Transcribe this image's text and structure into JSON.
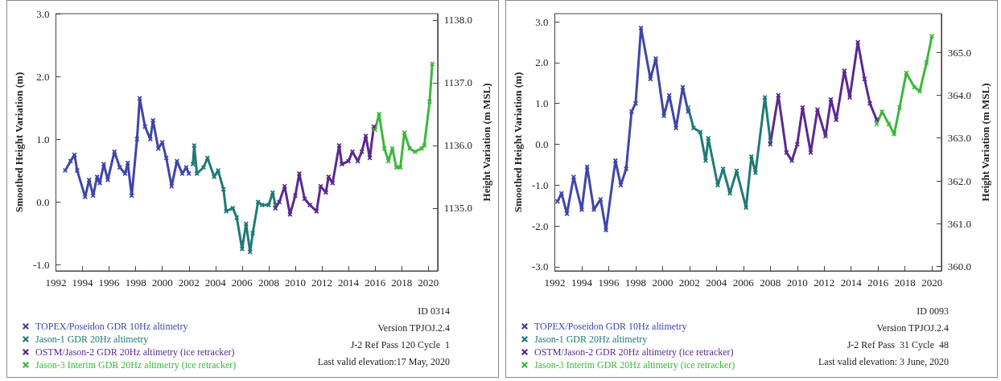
{
  "chart_data": [
    {
      "type": "line",
      "marker": "cross",
      "grid": false,
      "legend": "bottom left",
      "ylabel": "Smoothed Height Variation (m)",
      "y2label": "Height Variation (m MSL)",
      "xlim": [
        1992,
        2020.7
      ],
      "xticks": [
        1992,
        1994,
        1996,
        1998,
        2000,
        2002,
        2004,
        2006,
        2008,
        2010,
        2012,
        2014,
        2016,
        2018,
        2020
      ],
      "ylim": [
        -1.1,
        3.0
      ],
      "yticks": [
        {
          "value": -1,
          "label": "-1.0"
        },
        {
          "value": 0,
          "label": "0.0"
        },
        {
          "value": 1,
          "label": "1.0"
        },
        {
          "value": 2,
          "label": "2.0"
        },
        {
          "value": 3,
          "label": "3.0"
        }
      ],
      "y2lim": [
        1134.0,
        1138.1
      ],
      "y2ticks": [
        {
          "value": 1135,
          "label": "1135.0"
        },
        {
          "value": 1136,
          "label": "1136.0"
        },
        {
          "value": 1137,
          "label": "1137.0"
        },
        {
          "value": 1138,
          "label": "1138.0"
        }
      ],
      "series": [
        {
          "name": "TOPEX/Poseidon GDR 10Hz altimetry",
          "color": "#3f46a8",
          "x": [
            1992.7,
            1993.1,
            1993.4,
            1993.6,
            1994.2,
            1994.5,
            1994.8,
            1995.1,
            1995.3,
            1995.6,
            1995.9,
            1996.4,
            1996.8,
            1997.2,
            1997.4,
            1997.7,
            1998.1,
            1998.3,
            1998.7,
            1999.1,
            1999.3,
            1999.7,
            2000.0,
            2000.3,
            2000.7,
            2001.1,
            2001.5,
            2001.8,
            2002.0
          ],
          "values": [
            0.5,
            0.65,
            0.75,
            0.5,
            0.08,
            0.35,
            0.1,
            0.4,
            0.3,
            0.6,
            0.35,
            0.8,
            0.55,
            0.45,
            0.62,
            0.1,
            1.0,
            1.65,
            1.2,
            1.0,
            1.3,
            0.85,
            0.95,
            0.7,
            0.25,
            0.65,
            0.45,
            0.55,
            0.45
          ]
        },
        {
          "name": "Jason-1 GDR 20Hz altimetry",
          "color": "#1f7a78",
          "x": [
            2002.3,
            2002.4,
            2002.6,
            2003.1,
            2003.4,
            2003.9,
            2004.2,
            2004.6,
            2004.8,
            2005.3,
            2005.6,
            2006.0,
            2006.3,
            2006.6,
            2006.8,
            2007.2,
            2007.5,
            2008.0,
            2008.3,
            2008.5
          ],
          "values": [
            0.6,
            0.9,
            0.45,
            0.55,
            0.7,
            0.4,
            0.5,
            0.2,
            -0.15,
            -0.1,
            -0.25,
            -0.75,
            -0.35,
            -0.8,
            -0.5,
            0.0,
            -0.05,
            -0.05,
            0.15,
            -0.05
          ]
        },
        {
          "name": "OSTM/Jason-2 GDR 20Hz altimetry (ice retracker)",
          "color": "#5b2a8e",
          "x": [
            2008.5,
            2008.8,
            2009.2,
            2009.6,
            2010.0,
            2010.3,
            2010.7,
            2011.1,
            2011.6,
            2011.9,
            2012.3,
            2012.5,
            2012.8,
            2013.3,
            2013.5,
            2014.0,
            2014.3,
            2014.7,
            2015.0,
            2015.3,
            2015.6,
            2015.9
          ],
          "values": [
            -0.1,
            0.0,
            0.25,
            -0.2,
            0.1,
            0.45,
            0.05,
            -0.05,
            -0.15,
            0.25,
            0.15,
            0.4,
            0.3,
            0.9,
            0.6,
            0.65,
            0.8,
            0.65,
            0.8,
            1.05,
            0.7,
            1.2
          ]
        },
        {
          "name": "Jason-3 Interim GDR 20Hz altimetry (ice retracker)",
          "color": "#3cb83c",
          "x": [
            2016.0,
            2016.3,
            2016.7,
            2017.0,
            2017.3,
            2017.6,
            2017.9,
            2018.2,
            2018.6,
            2019.0,
            2019.5,
            2019.7,
            2020.1,
            2020.3
          ],
          "values": [
            1.15,
            1.4,
            0.85,
            0.65,
            0.85,
            0.55,
            0.55,
            1.1,
            0.85,
            0.8,
            0.85,
            0.9,
            1.6,
            2.2
          ]
        }
      ],
      "annotations": [
        "ID 0314",
        "Version TPJOJ.2.4",
        "J-2 Ref Pass 120 Cycle  1",
        "Last valid elevation:17 May, 2020"
      ]
    },
    {
      "type": "line",
      "marker": "cross",
      "grid": false,
      "legend": "bottom left",
      "ylabel": "Smoothed Height Variation (m)",
      "y2label": "Height Variation (m MSL)",
      "xlim": [
        1992,
        2020.7
      ],
      "xticks": [
        1992,
        1994,
        1996,
        1998,
        2000,
        2002,
        2004,
        2006,
        2008,
        2010,
        2012,
        2014,
        2016,
        2018,
        2020
      ],
      "ylim": [
        -3.1,
        3.2
      ],
      "yticks": [
        {
          "value": -3,
          "label": "-3.0"
        },
        {
          "value": -2,
          "label": "-2.0"
        },
        {
          "value": -1,
          "label": "-1.0"
        },
        {
          "value": 0,
          "label": "0.0"
        },
        {
          "value": 1,
          "label": "1.0"
        },
        {
          "value": 2,
          "label": "2.0"
        },
        {
          "value": 3,
          "label": "3.0"
        }
      ],
      "y2lim": [
        359.9,
        365.9
      ],
      "y2ticks": [
        {
          "value": 360,
          "label": "360.0"
        },
        {
          "value": 361,
          "label": "361.0"
        },
        {
          "value": 362,
          "label": "362.0"
        },
        {
          "value": 363,
          "label": "363.0"
        },
        {
          "value": 364,
          "label": "364.0"
        },
        {
          "value": 365,
          "label": "365.0"
        }
      ],
      "series": [
        {
          "name": "TOPEX/Poseidon GDR 10Hz altimetry",
          "color": "#3f46a8",
          "x": [
            1992.2,
            1992.5,
            1992.9,
            1993.4,
            1994.0,
            1994.4,
            1994.9,
            1995.4,
            1995.8,
            1996.5,
            1996.9,
            1997.3,
            1997.7,
            1998.0,
            1998.4,
            1999.1,
            1999.5,
            2000.1,
            2000.5,
            2001.0,
            2001.5,
            2001.9
          ],
          "values": [
            -1.4,
            -1.2,
            -1.7,
            -0.8,
            -1.6,
            -0.55,
            -1.6,
            -1.35,
            -2.1,
            -0.4,
            -1.0,
            -0.6,
            0.8,
            1.0,
            2.85,
            1.6,
            2.1,
            0.7,
            1.2,
            0.4,
            1.4,
            0.8
          ]
        },
        {
          "name": "Jason-1 GDR 20Hz altimetry",
          "color": "#1f7a78",
          "x": [
            2001.9,
            2002.3,
            2002.8,
            2003.2,
            2003.4,
            2004.1,
            2004.5,
            2005.0,
            2005.5,
            2006.2,
            2006.6,
            2006.9,
            2007.6,
            2008.0
          ],
          "values": [
            0.9,
            0.4,
            0.3,
            -0.4,
            0.15,
            -1.0,
            -0.6,
            -1.2,
            -0.65,
            -1.55,
            -0.3,
            -0.7,
            1.15,
            0.1
          ]
        },
        {
          "name": "OSTM/Jason-2 GDR 20Hz altimetry (ice retracker)",
          "color": "#5b2a8e",
          "x": [
            2008.0,
            2008.6,
            2009.2,
            2009.6,
            2010.0,
            2010.4,
            2011.0,
            2011.5,
            2012.1,
            2012.5,
            2012.9,
            2013.5,
            2013.9,
            2014.5,
            2015.0,
            2015.4,
            2015.9
          ],
          "values": [
            0.0,
            1.2,
            -0.2,
            -0.4,
            0.0,
            0.9,
            -0.2,
            0.85,
            0.2,
            1.1,
            0.6,
            1.8,
            1.15,
            2.5,
            1.6,
            1.0,
            0.6
          ]
        },
        {
          "name": "Jason-3 Interim GDR 20Hz altimetry (ice retracker)",
          "color": "#3cb83c",
          "x": [
            2015.9,
            2016.3,
            2016.8,
            2017.2,
            2017.6,
            2018.1,
            2018.7,
            2019.1,
            2019.6,
            2020.0
          ],
          "values": [
            0.5,
            0.8,
            0.5,
            0.25,
            0.9,
            1.75,
            1.4,
            1.3,
            2.0,
            2.65
          ]
        }
      ],
      "annotations": [
        "ID 0093",
        "Version TPJOJ.2.4",
        "J-2 Ref Pass  31 Cycle  48",
        "Last valid elevation: 3 June, 2020"
      ]
    }
  ]
}
